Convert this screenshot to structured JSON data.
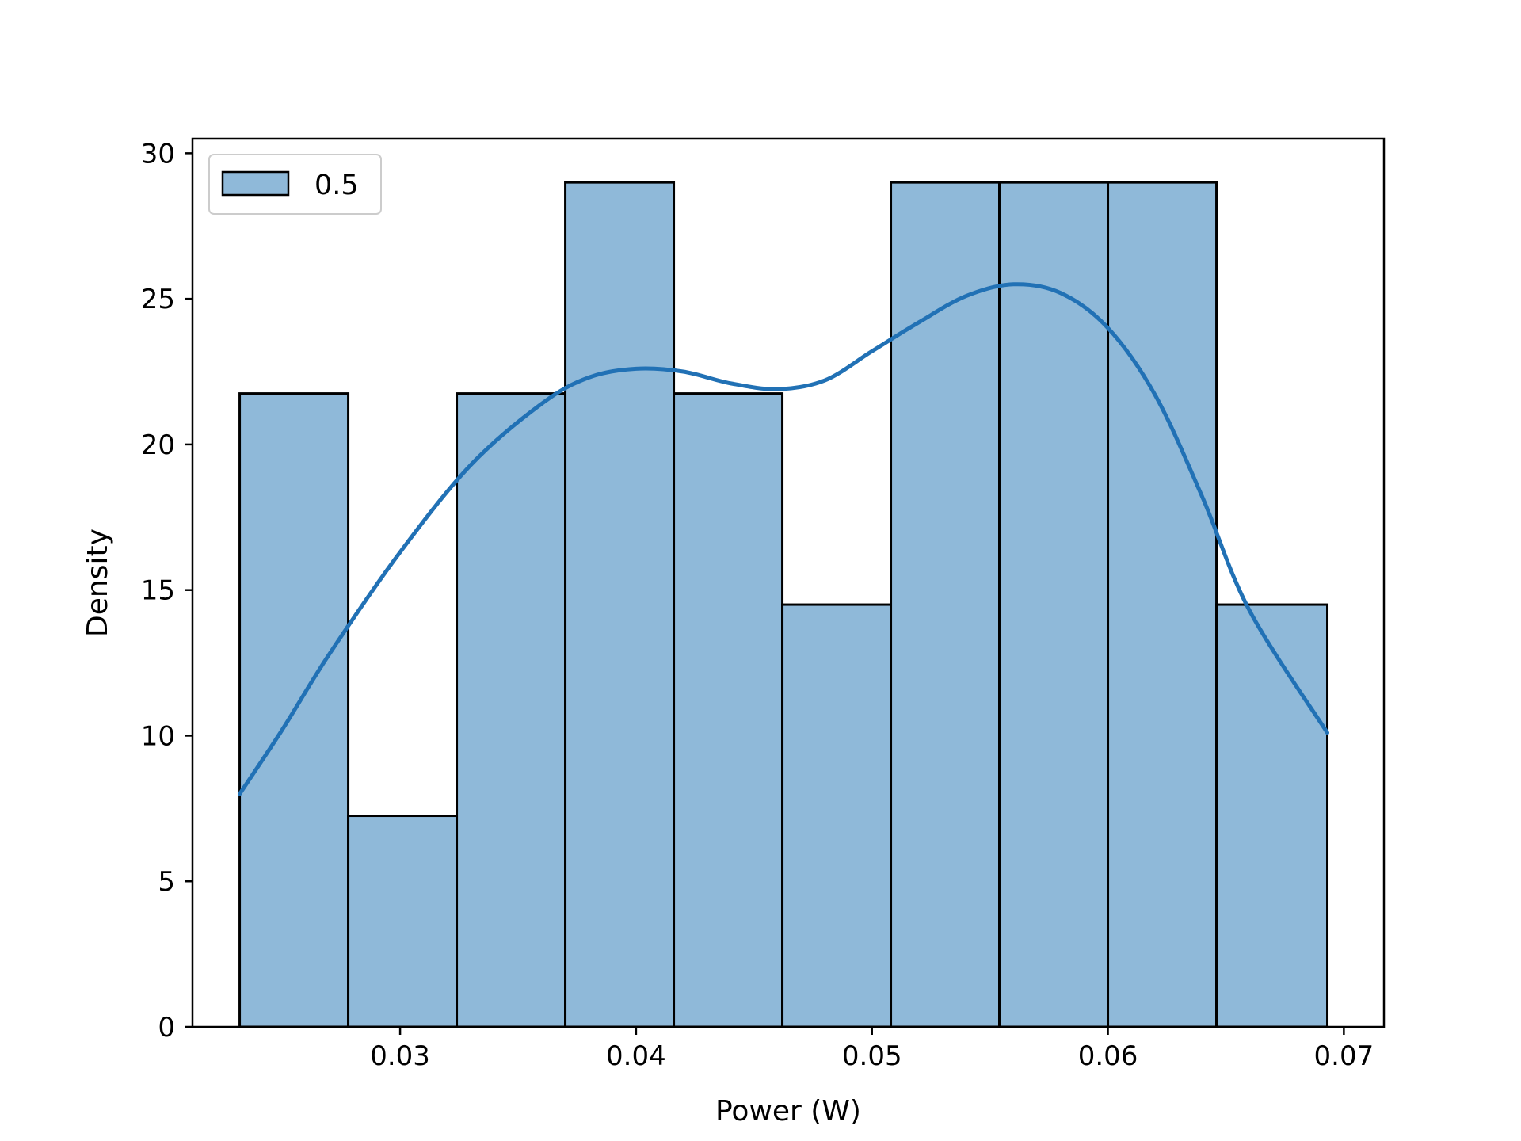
{
  "chart_data": {
    "type": "bar",
    "xlabel": "Power (W)",
    "ylabel": "Density",
    "xlim": [
      0.0212,
      0.0717
    ],
    "ylim": [
      0,
      30.5
    ],
    "x_ticks": [
      "0.03",
      "0.04",
      "0.05",
      "0.06",
      "0.07"
    ],
    "x_tick_values": [
      0.03,
      0.04,
      0.05,
      0.06,
      0.07
    ],
    "y_ticks": [
      "0",
      "5",
      "10",
      "15",
      "20",
      "25",
      "30"
    ],
    "y_tick_values": [
      0,
      5,
      10,
      15,
      20,
      25,
      30
    ],
    "legend": {
      "entries": [
        "0.5"
      ],
      "placement": "top-left"
    },
    "colors": {
      "bar_fill": "#8fb9d9",
      "bar_edge": "#000000",
      "kde_line": "#2171b5"
    },
    "bins": [
      {
        "x0": 0.0232,
        "x1": 0.0278,
        "value": 21.75
      },
      {
        "x0": 0.0278,
        "x1": 0.0324,
        "value": 7.25
      },
      {
        "x0": 0.0324,
        "x1": 0.037,
        "value": 21.75
      },
      {
        "x0": 0.037,
        "x1": 0.0416,
        "value": 29.0
      },
      {
        "x0": 0.0416,
        "x1": 0.0462,
        "value": 21.75
      },
      {
        "x0": 0.0462,
        "x1": 0.0508,
        "value": 14.5
      },
      {
        "x0": 0.0508,
        "x1": 0.0554,
        "value": 29.0
      },
      {
        "x0": 0.0554,
        "x1": 0.06,
        "value": 29.0
      },
      {
        "x0": 0.06,
        "x1": 0.0646,
        "value": 29.0
      },
      {
        "x0": 0.0646,
        "x1": 0.0693,
        "value": 14.5
      }
    ],
    "series": [
      {
        "name": "0.5",
        "kind": "kde",
        "x": [
          0.0232,
          0.025,
          0.027,
          0.03,
          0.033,
          0.036,
          0.038,
          0.04,
          0.042,
          0.044,
          0.046,
          0.048,
          0.05,
          0.052,
          0.054,
          0.056,
          0.058,
          0.06,
          0.062,
          0.064,
          0.066,
          0.0693
        ],
        "y": [
          8.0,
          10.2,
          12.8,
          16.3,
          19.3,
          21.4,
          22.3,
          22.6,
          22.5,
          22.1,
          21.9,
          22.2,
          23.2,
          24.2,
          25.1,
          25.5,
          25.2,
          24.0,
          21.7,
          18.2,
          14.3,
          10.1
        ]
      }
    ]
  }
}
